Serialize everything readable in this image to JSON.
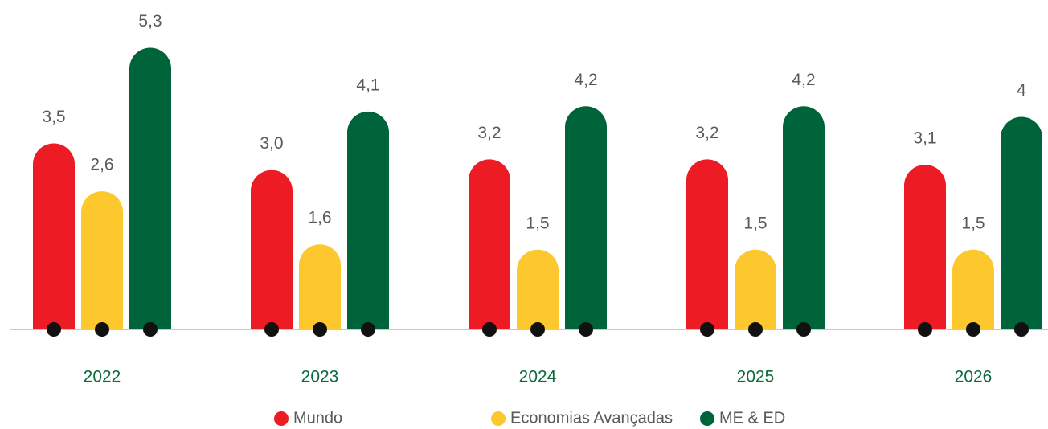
{
  "chart_data": {
    "type": "bar",
    "categories": [
      "2022",
      "2023",
      "2024",
      "2025",
      "2026"
    ],
    "series": [
      {
        "name": "Mundo",
        "color": "#ed1c24",
        "values": [
          3.5,
          3.0,
          3.2,
          3.2,
          3.1
        ],
        "value_labels": [
          "3,5",
          "3,0",
          "3,2",
          "3,2",
          "3,1"
        ]
      },
      {
        "name": "Economias Avançadas",
        "color": "#fcc82d",
        "values": [
          2.6,
          1.6,
          1.5,
          1.5,
          1.5
        ],
        "value_labels": [
          "2,6",
          "1,6",
          "1,5",
          "1,5",
          "1,5"
        ]
      },
      {
        "name": "ME & ED",
        "color": "#00643a",
        "values": [
          5.3,
          4.1,
          4.2,
          4.2,
          4
        ],
        "value_labels": [
          "5,3",
          "4,1",
          "4,2",
          "4,2",
          "4"
        ]
      }
    ],
    "ylim": [
      0,
      6.2
    ],
    "legend": "bottom"
  }
}
